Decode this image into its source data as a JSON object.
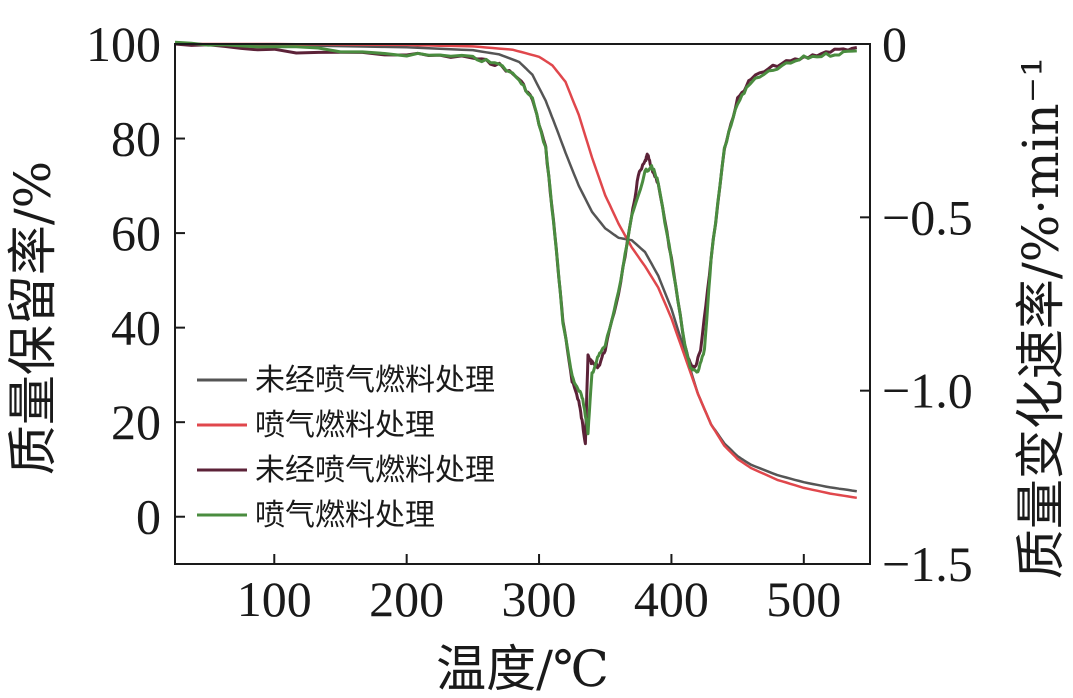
{
  "chart_data": {
    "type": "line",
    "xlabel": "温度/℃",
    "ylabel_left": "质量保留率/%",
    "ylabel_right": "质量变化速率/%·min⁻¹",
    "xlim": [
      25,
      550
    ],
    "ylim_left": [
      -10,
      100
    ],
    "ylim_right": [
      -1.5,
      0
    ],
    "x_ticks": [
      100,
      200,
      300,
      400,
      500
    ],
    "y_left_ticks": [
      0,
      20,
      40,
      60,
      80,
      100
    ],
    "y_right_ticks": [
      0,
      -0.5,
      -1.0,
      -1.5
    ],
    "y_right_tick_labels": [
      "0",
      "−0.5",
      "−1.0",
      "−1.5"
    ],
    "grid": false,
    "legend_position": "lower-left",
    "series": [
      {
        "name": "未经喷气燃料处理",
        "axis": "left",
        "color": "#555555",
        "x": [
          25,
          100,
          200,
          250,
          270,
          285,
          295,
          305,
          312,
          320,
          330,
          340,
          350,
          360,
          370,
          380,
          390,
          400,
          410,
          420,
          430,
          440,
          450,
          460,
          480,
          500,
          520,
          540
        ],
        "y": [
          100,
          99.8,
          99.3,
          98.7,
          97.8,
          96.2,
          93.5,
          88,
          83,
          77,
          70,
          64.5,
          61,
          59,
          58.5,
          56,
          51,
          44,
          35,
          26,
          19.5,
          15.5,
          12.8,
          11,
          8.8,
          7.3,
          6.2,
          5.4
        ]
      },
      {
        "name": "喷气燃料处理",
        "axis": "left",
        "color": "#e0474c",
        "x": [
          25,
          100,
          200,
          250,
          280,
          300,
          310,
          320,
          330,
          340,
          350,
          360,
          370,
          380,
          390,
          400,
          410,
          420,
          430,
          440,
          450,
          460,
          480,
          500,
          520,
          540
        ],
        "y": [
          100,
          100,
          99.8,
          99.5,
          98.8,
          97.3,
          95.5,
          92,
          85,
          76,
          68,
          62,
          57,
          53,
          48.5,
          42,
          34,
          26,
          19.5,
          15,
          12.2,
          10.3,
          7.8,
          6.1,
          4.9,
          4
        ]
      },
      {
        "name": "未经喷气燃料处理",
        "axis": "right",
        "color": "#5c2238",
        "x": [
          25,
          100,
          200,
          250,
          270,
          285,
          295,
          305,
          312,
          318,
          325,
          330,
          333,
          335,
          337,
          340,
          345,
          350,
          360,
          370,
          375,
          380,
          382,
          385,
          390,
          400,
          410,
          415,
          418,
          422,
          430,
          440,
          450,
          460,
          480,
          500,
          520,
          540
        ],
        "y": [
          0,
          -0.02,
          -0.03,
          -0.04,
          -0.06,
          -0.1,
          -0.16,
          -0.3,
          -0.55,
          -0.8,
          -0.97,
          -1.03,
          -1.1,
          -1.15,
          -0.9,
          -0.92,
          -0.93,
          -0.88,
          -0.72,
          -0.5,
          -0.38,
          -0.34,
          -0.32,
          -0.36,
          -0.4,
          -0.62,
          -0.87,
          -0.93,
          -0.93,
          -0.88,
          -0.62,
          -0.3,
          -0.16,
          -0.1,
          -0.06,
          -0.04,
          -0.02,
          -0.01
        ]
      },
      {
        "name": "喷气燃料处理",
        "axis": "right",
        "color": "#4a8c3f",
        "x": [
          25,
          100,
          200,
          250,
          270,
          285,
          295,
          305,
          312,
          318,
          325,
          330,
          333,
          337,
          340,
          345,
          350,
          360,
          370,
          380,
          385,
          390,
          400,
          410,
          415,
          420,
          425,
          430,
          440,
          450,
          460,
          480,
          500,
          520,
          540
        ],
        "y": [
          0,
          -0.01,
          -0.03,
          -0.04,
          -0.06,
          -0.1,
          -0.16,
          -0.3,
          -0.55,
          -0.8,
          -0.96,
          -1.0,
          -1.02,
          -1.12,
          -0.95,
          -0.9,
          -0.87,
          -0.72,
          -0.5,
          -0.37,
          -0.35,
          -0.4,
          -0.62,
          -0.87,
          -0.94,
          -0.95,
          -0.88,
          -0.62,
          -0.3,
          -0.17,
          -0.11,
          -0.07,
          -0.04,
          -0.03,
          -0.02
        ]
      }
    ]
  }
}
